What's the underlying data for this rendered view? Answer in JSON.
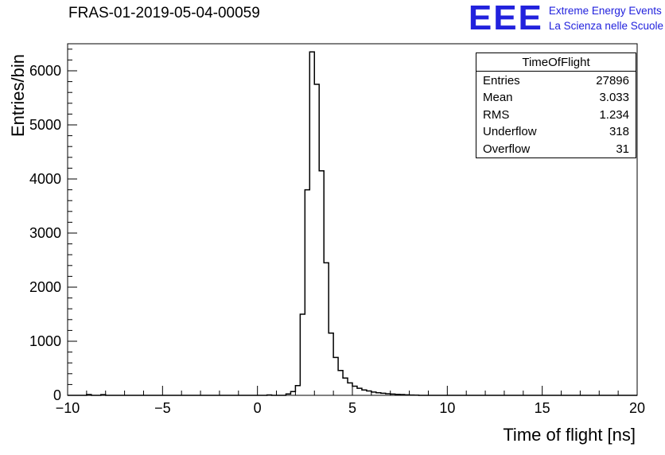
{
  "header": {
    "title": "FRAS-01-2019-05-04-00059",
    "logo": {
      "acronym": "EEE",
      "line1": "Extreme Energy Events",
      "line2": "La Scienza nelle Scuole",
      "color": "#2222dd"
    }
  },
  "stats": {
    "title": "TimeOfFlight",
    "rows": [
      {
        "label": "Entries",
        "value": "27896"
      },
      {
        "label": "Mean",
        "value": "3.033"
      },
      {
        "label": "RMS",
        "value": "1.234"
      },
      {
        "label": "Underflow",
        "value": "318"
      },
      {
        "label": "Overflow",
        "value": "31"
      }
    ]
  },
  "chart_data": {
    "type": "bar",
    "subtype": "step-histogram",
    "title": "FRAS-01-2019-05-04-00059",
    "xlabel": "Time of flight [ns]",
    "ylabel": "Entries/bin",
    "xlim": [
      -10,
      20
    ],
    "ylim": [
      0,
      6500
    ],
    "grid": false,
    "legend": "none",
    "line_color": "#000000",
    "bin_start": -10,
    "bin_width": 0.25,
    "values": [
      0,
      0,
      0,
      0,
      15,
      0,
      0,
      12,
      0,
      0,
      0,
      0,
      0,
      0,
      0,
      0,
      0,
      0,
      0,
      0,
      0,
      0,
      0,
      0,
      0,
      0,
      0,
      0,
      0,
      0,
      0,
      0,
      0,
      0,
      0,
      0,
      0,
      0,
      0,
      0,
      0,
      0,
      8,
      0,
      0,
      0,
      25,
      70,
      180,
      1500,
      3800,
      6350,
      5750,
      4150,
      2450,
      1150,
      700,
      460,
      320,
      230,
      170,
      130,
      100,
      80,
      60,
      48,
      38,
      30,
      24,
      18,
      14,
      10,
      6,
      3,
      0,
      0,
      0,
      0,
      0,
      0,
      0,
      0,
      0,
      0,
      0,
      0,
      0,
      0,
      0,
      0,
      0,
      0,
      0,
      0,
      0,
      0,
      0,
      0,
      0,
      0,
      0,
      0,
      0,
      0,
      0,
      0,
      0,
      0,
      0,
      0,
      0,
      0,
      0,
      0,
      0,
      0,
      0,
      0,
      0,
      0
    ],
    "xticks": [
      -10,
      -5,
      0,
      5,
      10,
      15,
      20
    ],
    "yticks": [
      0,
      1000,
      2000,
      3000,
      4000,
      5000,
      6000
    ],
    "x_minor_step": 1,
    "y_minor_step": 200
  }
}
